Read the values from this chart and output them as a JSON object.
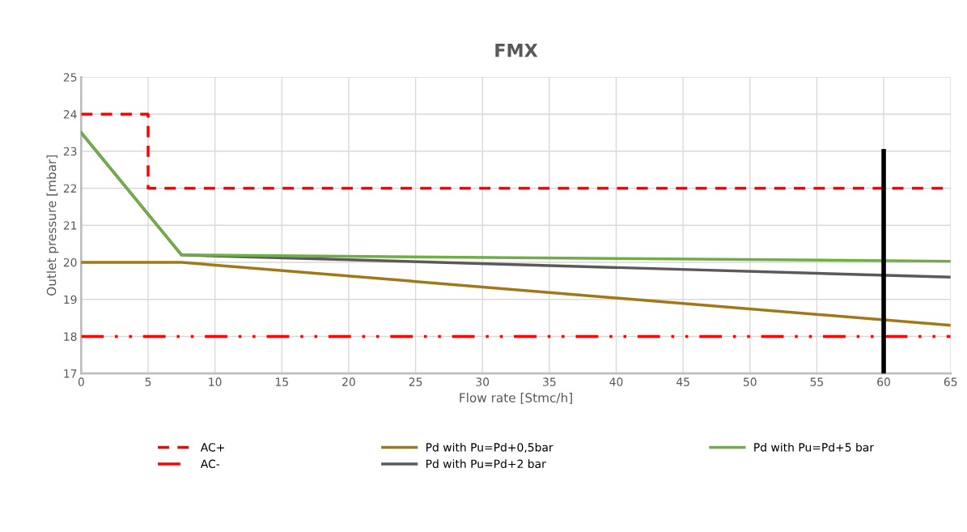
{
  "chart_data": {
    "type": "line",
    "title": "FMX",
    "xlabel": "Flow rate [Stmc/h]",
    "ylabel": "Outlet pressure [mbar]",
    "xlim": [
      0,
      65
    ],
    "xticks": [
      0,
      5,
      10,
      15,
      20,
      25,
      30,
      35,
      40,
      45,
      50,
      55,
      60,
      65
    ],
    "ylim": [
      17,
      25
    ],
    "yticks": [
      17,
      18,
      19,
      20,
      21,
      22,
      23,
      24,
      25
    ],
    "grid": true,
    "legend": "bottom",
    "marker": "none",
    "series": [
      {
        "name": "AC+",
        "color": "#ff0000",
        "line_style": "dashed",
        "x": [
          0,
          5,
          5,
          65
        ],
        "values": [
          24,
          24,
          22,
          22
        ]
      },
      {
        "name": "AC-",
        "color": "#ff0000",
        "line_style": "dashdotdot",
        "x": [
          0,
          65
        ],
        "values": [
          18,
          18
        ]
      },
      {
        "name": "Pd with Pu=Pd+0,5bar",
        "color": "#a07818",
        "line_style": "solid",
        "x": [
          0,
          7.5,
          65
        ],
        "values": [
          20,
          20,
          18.3
        ]
      },
      {
        "name": "Pd with Pu=Pd+2 bar",
        "color": "#5a5a5a",
        "line_style": "solid",
        "x": [
          0,
          7.5,
          65
        ],
        "values": [
          23.5,
          20.2,
          19.6
        ]
      },
      {
        "name": "Pd with Pu=Pd+5 bar",
        "color": "#70ad47",
        "line_style": "solid",
        "x": [
          0,
          7.5,
          65
        ],
        "values": [
          23.5,
          20.2,
          20.03
        ]
      },
      {
        "color": "#000000",
        "line_style": "solid",
        "x": [
          60,
          60
        ],
        "values": [
          17,
          23
        ]
      }
    ]
  }
}
